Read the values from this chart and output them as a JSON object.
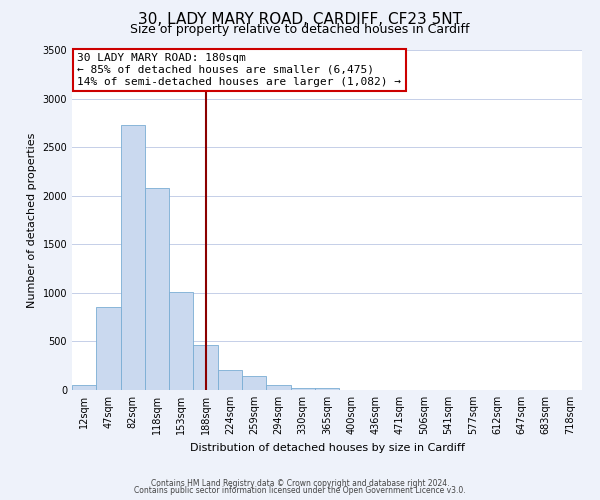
{
  "title": "30, LADY MARY ROAD, CARDIFF, CF23 5NT",
  "subtitle": "Size of property relative to detached houses in Cardiff",
  "xlabel": "Distribution of detached houses by size in Cardiff",
  "ylabel": "Number of detached properties",
  "bar_labels": [
    "12sqm",
    "47sqm",
    "82sqm",
    "118sqm",
    "153sqm",
    "188sqm",
    "224sqm",
    "259sqm",
    "294sqm",
    "330sqm",
    "365sqm",
    "400sqm",
    "436sqm",
    "471sqm",
    "506sqm",
    "541sqm",
    "577sqm",
    "612sqm",
    "647sqm",
    "683sqm",
    "718sqm"
  ],
  "bar_values": [
    55,
    850,
    2725,
    2075,
    1010,
    460,
    205,
    145,
    55,
    20,
    20,
    0,
    0,
    0,
    0,
    0,
    0,
    0,
    0,
    0,
    0
  ],
  "bar_color": "#cad9ef",
  "bar_edge_color": "#7aadd4",
  "property_line_index": 5,
  "property_line_color": "#8b0000",
  "ylim": [
    0,
    3500
  ],
  "yticks": [
    0,
    500,
    1000,
    1500,
    2000,
    2500,
    3000,
    3500
  ],
  "annotation_title": "30 LADY MARY ROAD: 180sqm",
  "annotation_line1": "← 85% of detached houses are smaller (6,475)",
  "annotation_line2": "14% of semi-detached houses are larger (1,082) →",
  "annotation_box_color": "#ffffff",
  "annotation_box_edge": "#cc0000",
  "footnote1": "Contains HM Land Registry data © Crown copyright and database right 2024.",
  "footnote2": "Contains public sector information licensed under the Open Government Licence v3.0.",
  "background_color": "#eef2fa",
  "plot_bg_color": "#ffffff",
  "grid_color": "#c5cfe8",
  "title_fontsize": 11,
  "subtitle_fontsize": 9,
  "axis_label_fontsize": 8,
  "tick_fontsize": 7
}
